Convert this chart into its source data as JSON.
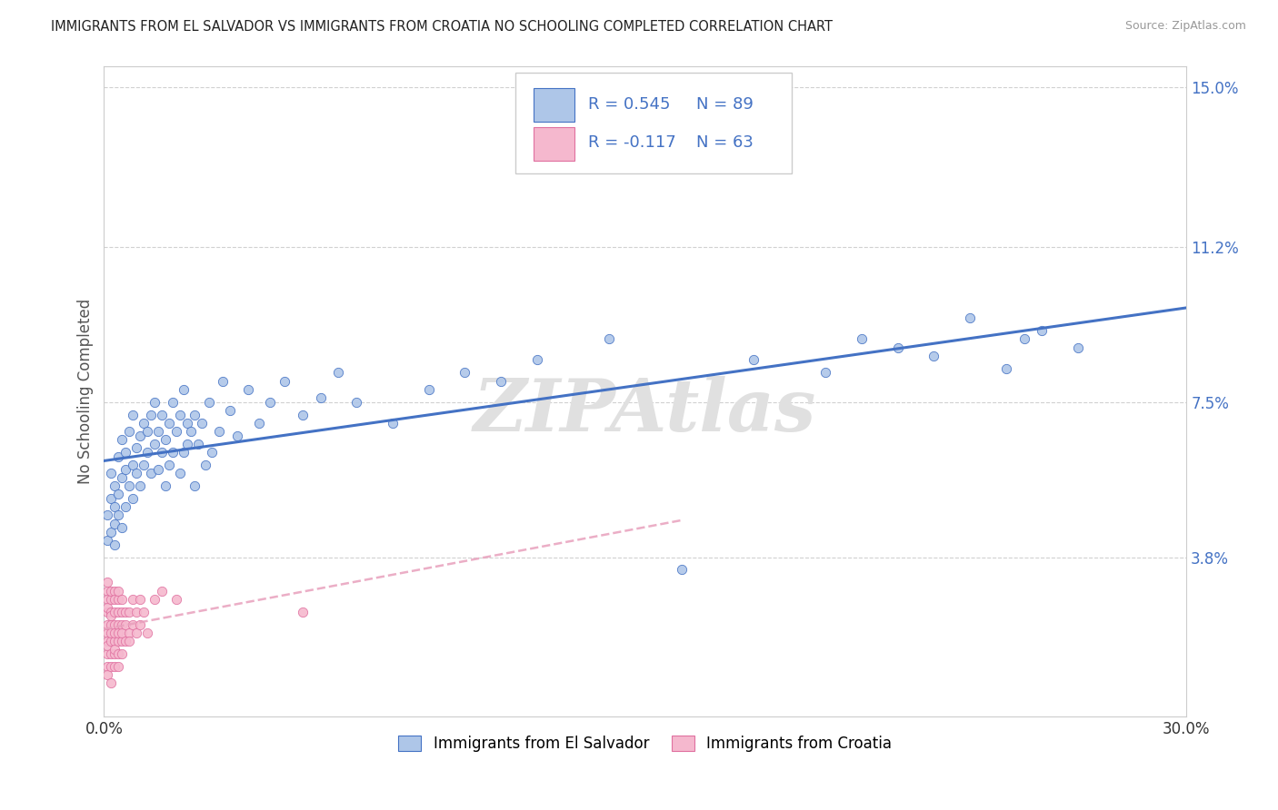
{
  "title": "IMMIGRANTS FROM EL SALVADOR VS IMMIGRANTS FROM CROATIA NO SCHOOLING COMPLETED CORRELATION CHART",
  "source": "Source: ZipAtlas.com",
  "ylabel": "No Schooling Completed",
  "legend_label1": "Immigrants from El Salvador",
  "legend_label2": "Immigrants from Croatia",
  "r1": 0.545,
  "n1": 89,
  "r2": -0.117,
  "n2": 63,
  "color1": "#aec6e8",
  "color2": "#f5b8ce",
  "line1_color": "#4472c4",
  "line2_color": "#e8a0bc",
  "xmin": 0.0,
  "xmax": 0.3,
  "ymin": 0.0,
  "ymax": 0.155,
  "ytick_positions": [
    0.038,
    0.075,
    0.112,
    0.15
  ],
  "ytick_labels": [
    "3.8%",
    "7.5%",
    "11.2%",
    "15.0%"
  ],
  "watermark": "ZIPAtlas",
  "background_color": "#ffffff",
  "grid_color": "#cccccc",
  "el_salvador_x": [
    0.001,
    0.001,
    0.002,
    0.002,
    0.002,
    0.003,
    0.003,
    0.003,
    0.003,
    0.004,
    0.004,
    0.004,
    0.005,
    0.005,
    0.005,
    0.006,
    0.006,
    0.006,
    0.007,
    0.007,
    0.008,
    0.008,
    0.008,
    0.009,
    0.009,
    0.01,
    0.01,
    0.011,
    0.011,
    0.012,
    0.012,
    0.013,
    0.013,
    0.014,
    0.014,
    0.015,
    0.015,
    0.016,
    0.016,
    0.017,
    0.017,
    0.018,
    0.018,
    0.019,
    0.019,
    0.02,
    0.021,
    0.021,
    0.022,
    0.022,
    0.023,
    0.023,
    0.024,
    0.025,
    0.025,
    0.026,
    0.027,
    0.028,
    0.029,
    0.03,
    0.032,
    0.033,
    0.035,
    0.037,
    0.04,
    0.043,
    0.046,
    0.05,
    0.055,
    0.06,
    0.065,
    0.07,
    0.08,
    0.09,
    0.1,
    0.11,
    0.12,
    0.14,
    0.16,
    0.18,
    0.2,
    0.21,
    0.22,
    0.23,
    0.24,
    0.25,
    0.255,
    0.26,
    0.27
  ],
  "el_salvador_y": [
    0.048,
    0.042,
    0.052,
    0.044,
    0.058,
    0.046,
    0.05,
    0.055,
    0.041,
    0.053,
    0.048,
    0.062,
    0.057,
    0.045,
    0.066,
    0.059,
    0.063,
    0.05,
    0.055,
    0.068,
    0.06,
    0.052,
    0.072,
    0.058,
    0.064,
    0.067,
    0.055,
    0.06,
    0.07,
    0.063,
    0.068,
    0.072,
    0.058,
    0.065,
    0.075,
    0.059,
    0.068,
    0.072,
    0.063,
    0.066,
    0.055,
    0.07,
    0.06,
    0.075,
    0.063,
    0.068,
    0.058,
    0.072,
    0.063,
    0.078,
    0.065,
    0.07,
    0.068,
    0.072,
    0.055,
    0.065,
    0.07,
    0.06,
    0.075,
    0.063,
    0.068,
    0.08,
    0.073,
    0.067,
    0.078,
    0.07,
    0.075,
    0.08,
    0.072,
    0.076,
    0.082,
    0.075,
    0.07,
    0.078,
    0.082,
    0.08,
    0.085,
    0.09,
    0.035,
    0.085,
    0.082,
    0.09,
    0.088,
    0.086,
    0.095,
    0.083,
    0.09,
    0.092,
    0.088
  ],
  "croatia_x": [
    0.001,
    0.001,
    0.001,
    0.001,
    0.001,
    0.001,
    0.001,
    0.001,
    0.001,
    0.001,
    0.001,
    0.001,
    0.002,
    0.002,
    0.002,
    0.002,
    0.002,
    0.002,
    0.002,
    0.002,
    0.002,
    0.002,
    0.003,
    0.003,
    0.003,
    0.003,
    0.003,
    0.003,
    0.003,
    0.003,
    0.003,
    0.004,
    0.004,
    0.004,
    0.004,
    0.004,
    0.004,
    0.004,
    0.004,
    0.005,
    0.005,
    0.005,
    0.005,
    0.005,
    0.005,
    0.006,
    0.006,
    0.006,
    0.007,
    0.007,
    0.007,
    0.008,
    0.008,
    0.009,
    0.009,
    0.01,
    0.01,
    0.011,
    0.012,
    0.014,
    0.016,
    0.02,
    0.055
  ],
  "croatia_y": [
    0.025,
    0.02,
    0.03,
    0.015,
    0.018,
    0.028,
    0.022,
    0.012,
    0.032,
    0.017,
    0.01,
    0.026,
    0.022,
    0.018,
    0.028,
    0.015,
    0.025,
    0.012,
    0.03,
    0.02,
    0.008,
    0.024,
    0.018,
    0.025,
    0.015,
    0.03,
    0.012,
    0.022,
    0.028,
    0.016,
    0.02,
    0.025,
    0.018,
    0.022,
    0.015,
    0.028,
    0.012,
    0.02,
    0.03,
    0.022,
    0.018,
    0.025,
    0.015,
    0.028,
    0.02,
    0.022,
    0.018,
    0.025,
    0.02,
    0.025,
    0.018,
    0.022,
    0.028,
    0.02,
    0.025,
    0.022,
    0.028,
    0.025,
    0.02,
    0.028,
    0.03,
    0.028,
    0.025
  ]
}
